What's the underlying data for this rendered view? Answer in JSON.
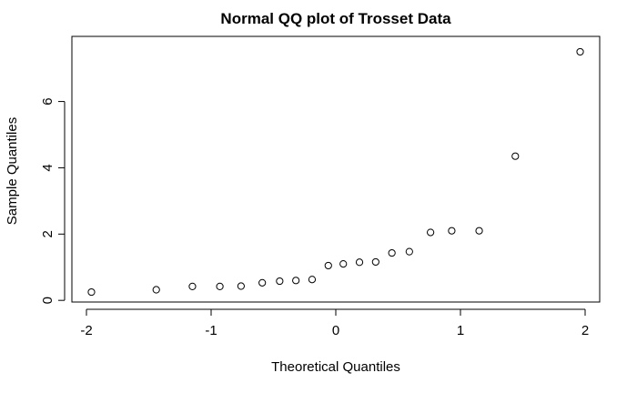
{
  "chart_data": {
    "type": "scatter",
    "title": "Normal QQ plot of Trosset Data",
    "xlabel": "Theoretical Quantiles",
    "ylabel": "Sample Quantiles",
    "xlim": [
      -2.0,
      2.0
    ],
    "ylim": [
      -0.05,
      7.8
    ],
    "x_ticks": [
      -2,
      -1,
      0,
      1,
      2
    ],
    "y_ticks": [
      0,
      2,
      4,
      6
    ],
    "grid": false,
    "marker": "open-circle",
    "points": [
      {
        "x": -1.96,
        "y": 0.25
      },
      {
        "x": -1.44,
        "y": 0.32
      },
      {
        "x": -1.15,
        "y": 0.42
      },
      {
        "x": -0.93,
        "y": 0.42
      },
      {
        "x": -0.76,
        "y": 0.43
      },
      {
        "x": -0.59,
        "y": 0.53
      },
      {
        "x": -0.45,
        "y": 0.58
      },
      {
        "x": -0.32,
        "y": 0.6
      },
      {
        "x": -0.19,
        "y": 0.63
      },
      {
        "x": -0.06,
        "y": 1.05
      },
      {
        "x": 0.06,
        "y": 1.1
      },
      {
        "x": 0.19,
        "y": 1.15
      },
      {
        "x": 0.32,
        "y": 1.16
      },
      {
        "x": 0.45,
        "y": 1.43
      },
      {
        "x": 0.59,
        "y": 1.47
      },
      {
        "x": 0.76,
        "y": 2.05
      },
      {
        "x": 0.93,
        "y": 2.1
      },
      {
        "x": 1.15,
        "y": 2.1
      },
      {
        "x": 1.44,
        "y": 4.35
      },
      {
        "x": 1.96,
        "y": 7.5
      }
    ]
  },
  "colors": {
    "ink": "#000000",
    "background": "#ffffff"
  }
}
